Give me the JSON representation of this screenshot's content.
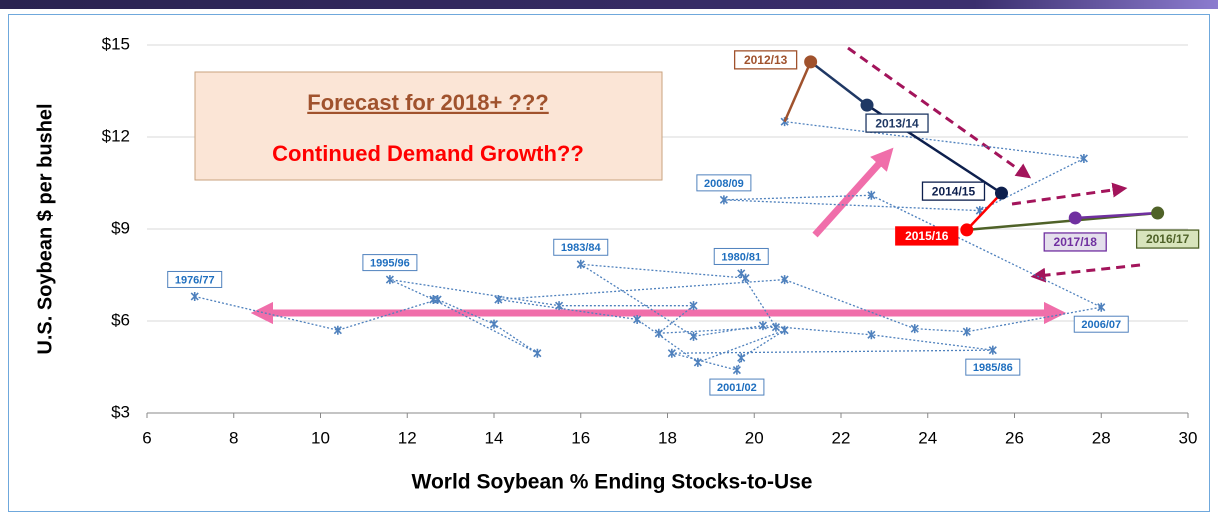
{
  "chart_data": {
    "type": "scatter",
    "ylabel": "U.S. Soybean $ per bushel",
    "xlabel": "World Soybean % Ending Stocks-to-Use",
    "annotations": [
      "Forecast for 2018+ ???",
      "Continued Demand Growth??"
    ],
    "xlim": [
      6,
      30
    ],
    "xticks": [
      6,
      8,
      10,
      12,
      14,
      16,
      18,
      20,
      22,
      24,
      26,
      28,
      30
    ],
    "ylim": [
      3,
      15
    ],
    "yticks": [
      {
        "value": 3,
        "label": "$3"
      },
      {
        "value": 6,
        "label": "$6"
      },
      {
        "value": 9,
        "label": "$9"
      },
      {
        "value": 12,
        "label": "$12"
      },
      {
        "value": 15,
        "label": "$15"
      }
    ],
    "grid": true,
    "series": [
      {
        "color": "#4f81bd",
        "x": [
          7.1,
          10.4,
          12.7,
          14.0,
          15.0,
          12.6,
          11.6,
          15.5,
          18.6,
          17.8,
          20.5,
          19.7,
          19.8,
          16.0,
          18.6,
          20.2,
          22.7,
          25.5,
          18.1,
          19.6,
          19.7,
          20.7,
          18.7,
          17.3,
          14.1,
          20.7,
          23.7,
          24.9,
          28.0,
          22.7,
          19.3,
          25.2,
          27.6,
          20.7
        ],
        "values": [
          6.8,
          5.7,
          6.7,
          5.9,
          4.95,
          6.7,
          7.35,
          6.5,
          6.5,
          5.6,
          5.8,
          7.55,
          7.4,
          7.85,
          5.5,
          5.85,
          5.55,
          5.05,
          4.95,
          4.4,
          4.8,
          5.7,
          4.65,
          6.05,
          6.7,
          7.35,
          5.75,
          5.65,
          6.45,
          10.1,
          9.95,
          9.6,
          11.3,
          12.5
        ],
        "labels": [
          "1976/77",
          null,
          null,
          null,
          null,
          null,
          "1995/96",
          null,
          null,
          null,
          null,
          "1980/81",
          null,
          "1983/84",
          null,
          null,
          null,
          "1985/86",
          null,
          "2001/02",
          null,
          null,
          null,
          null,
          null,
          null,
          null,
          null,
          "2006/07",
          null,
          "2008/09",
          null,
          null,
          null
        ]
      },
      {
        "x": [
          21.3,
          22.6,
          25.7,
          24.9,
          29.3,
          27.4
        ],
        "values": [
          14.45,
          13.04,
          10.17,
          8.97,
          9.52,
          9.36
        ],
        "labels": [
          "2012/13",
          "2013/14",
          "2014/15",
          "2015/16",
          "2016/17",
          "2017/18"
        ],
        "colors": [
          "#a0522d",
          "#1f3864",
          "#0d1f4d",
          "#ff0000",
          "#4f6228",
          "#7030a0"
        ],
        "label_fills": [
          "#ffffff",
          "#ffffff",
          "#ffffff",
          "#ff0000",
          "#d8e4bc",
          "#e4dfec"
        ]
      }
    ]
  }
}
